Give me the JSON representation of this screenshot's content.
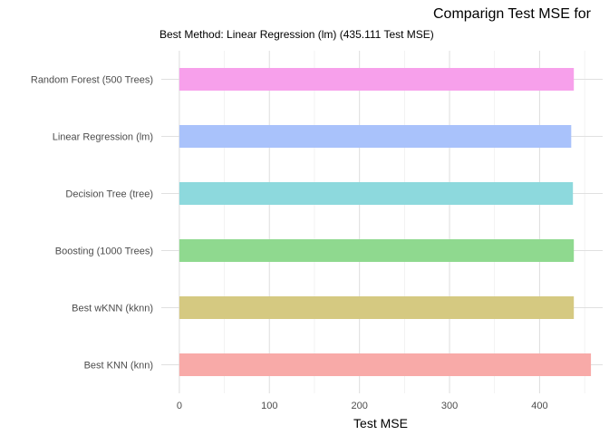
{
  "chart_data": {
    "type": "bar",
    "orientation": "horizontal",
    "title": "Comparign Test MSE for",
    "subtitle": "Best Method: Linear Regression (lm)  (435.111 Test MSE)",
    "xlabel": "Test MSE",
    "ylabel": "",
    "xlim": [
      -20,
      470
    ],
    "x_ticks": [
      0,
      100,
      200,
      300,
      400
    ],
    "grid": true,
    "legend": "none",
    "categories": [
      "Random Forest (500 Trees)",
      "Linear Regression (lm)",
      "Decision Tree (tree)",
      "Boosting (1000 Trees)",
      "Best wKNN (kknn)",
      "Best KNN (knn)"
    ],
    "values": [
      438,
      435.111,
      437,
      438,
      438,
      457
    ],
    "colors": [
      "#f7a0eb",
      "#a9c2fb",
      "#8dd9dd",
      "#8fd98f",
      "#d5c981",
      "#f8aaa8"
    ]
  }
}
